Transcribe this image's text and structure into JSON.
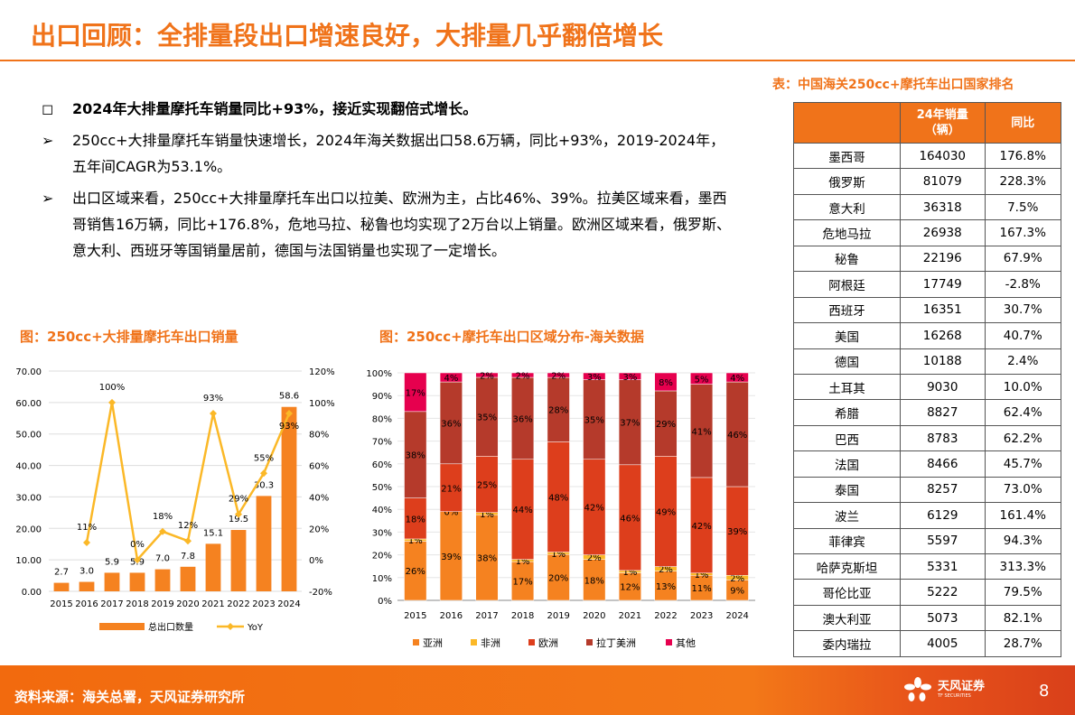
{
  "header": {
    "title": "出口回顾：全排量段出口增速良好，大排量几乎翻倍增长"
  },
  "bullets": [
    {
      "marker": "◻",
      "text": "2024年大排量摩托车销量同比+93%，接近实现翻倍式增长。"
    },
    {
      "marker": "➢",
      "text": "250cc+大排量摩托车销量快速增长，2024年海关数据出口58.6万辆，同比+93%，2019-2024年，五年间CAGR为53.1%。"
    },
    {
      "marker": "➢",
      "text": "出口区域来看，250cc+大排量摩托车出口以拉美、欧洲为主，占比46%、39%。拉美区域来看，墨西哥销售16万辆，同比+176.8%，危地马拉、秘鲁也均实现了2万台以上销量。欧洲区域来看，俄罗斯、意大利、西班牙等国销量居前，德国与法国销量也实现了一定增长。"
    }
  ],
  "table": {
    "caption": "表：中国海关250cc+摩托车出口国家排名",
    "headers": [
      "",
      "24年销量\n（辆）",
      "同比"
    ],
    "rows": [
      [
        "墨西哥",
        "164030",
        "176.8%"
      ],
      [
        "俄罗斯",
        "81079",
        "228.3%"
      ],
      [
        "意大利",
        "36318",
        "7.5%"
      ],
      [
        "危地马拉",
        "26938",
        "167.3%"
      ],
      [
        "秘鲁",
        "22196",
        "67.9%"
      ],
      [
        "阿根廷",
        "17749",
        "-2.8%"
      ],
      [
        "西班牙",
        "16351",
        "30.7%"
      ],
      [
        "美国",
        "16268",
        "40.7%"
      ],
      [
        "德国",
        "10188",
        "2.4%"
      ],
      [
        "土耳其",
        "9030",
        "10.0%"
      ],
      [
        "希腊",
        "8827",
        "62.4%"
      ],
      [
        "巴西",
        "8783",
        "62.2%"
      ],
      [
        "法国",
        "8466",
        "45.7%"
      ],
      [
        "泰国",
        "8257",
        "73.0%"
      ],
      [
        "波兰",
        "6129",
        "161.4%"
      ],
      [
        "菲律宾",
        "5597",
        "94.3%"
      ],
      [
        "哈萨克斯坦",
        "5331",
        "313.3%"
      ],
      [
        "哥伦比亚",
        "5222",
        "79.5%"
      ],
      [
        "澳大利亚",
        "5073",
        "82.1%"
      ],
      [
        "委内瑞拉",
        "4005",
        "28.7%"
      ]
    ]
  },
  "chart_data": [
    {
      "type": "bar+line",
      "title": "图：250cc+大排量摩托车出口销量",
      "categories": [
        "2015",
        "2016",
        "2017",
        "2018",
        "2019",
        "2020",
        "2021",
        "2022",
        "2023",
        "2024"
      ],
      "series": [
        {
          "name": "总出口数量",
          "type": "bar",
          "axis": "left",
          "values": [
            2.7,
            3.0,
            5.9,
            5.9,
            7.0,
            7.8,
            15.1,
            19.5,
            30.3,
            58.6
          ],
          "labels": [
            "2.7",
            "3.0",
            "5.9",
            "5.9",
            "7.0",
            "7.8",
            "15.1",
            "19.5",
            "30.3",
            "58.6"
          ],
          "color": "#f58220"
        },
        {
          "name": "YoY",
          "type": "line",
          "axis": "right",
          "values": [
            null,
            11,
            100,
            0,
            18,
            12,
            93,
            29,
            55,
            93
          ],
          "labels": [
            "",
            "11%",
            "100%",
            "0%",
            "18%",
            "12%",
            "93%",
            "29%",
            "55%",
            "93%"
          ],
          "color": "#fbb827"
        }
      ],
      "ylim_left": [
        0,
        70
      ],
      "yticks_left": [
        "0.00",
        "10.00",
        "20.00",
        "30.00",
        "40.00",
        "50.00",
        "60.00",
        "70.00"
      ],
      "ylim_right": [
        -20,
        120
      ],
      "yticks_right": [
        "-20%",
        "0%",
        "20%",
        "40%",
        "60%",
        "80%",
        "100%",
        "120%"
      ],
      "grid": true,
      "legend": "bottom"
    },
    {
      "type": "stacked-bar",
      "title": "图：250cc+摩托车出口区域分布-海关数据",
      "categories": [
        "2015",
        "2016",
        "2017",
        "2018",
        "2019",
        "2020",
        "2021",
        "2022",
        "2023",
        "2024"
      ],
      "series": [
        {
          "name": "亚洲",
          "color": "#f58220",
          "values": [
            26,
            39,
            38,
            17,
            20,
            18,
            12,
            13,
            11,
            9
          ]
        },
        {
          "name": "非洲",
          "color": "#fbb827",
          "values": [
            1,
            0,
            1,
            1,
            1,
            2,
            1,
            2,
            1,
            2
          ]
        },
        {
          "name": "欧洲",
          "color": "#dd3e1c",
          "values": [
            18,
            21,
            25,
            44,
            48,
            42,
            46,
            49,
            42,
            39
          ]
        },
        {
          "name": "拉丁美洲",
          "color": "#b53a2b",
          "values": [
            38,
            36,
            35,
            36,
            28,
            35,
            37,
            29,
            41,
            46
          ]
        },
        {
          "name": "其他",
          "color": "#e6004e",
          "values": [
            17,
            4,
            2,
            2,
            2,
            3,
            3,
            8,
            5,
            4
          ]
        }
      ],
      "ylim": [
        0,
        100
      ],
      "yticks": [
        "0%",
        "10%",
        "20%",
        "30%",
        "40%",
        "50%",
        "60%",
        "70%",
        "80%",
        "90%",
        "100%"
      ],
      "grid": true,
      "legend": "bottom"
    }
  ],
  "footer": {
    "source": "资料来源：海关总署，天风证券研究所",
    "logo_name": "天风证券",
    "logo_sub": "TF SECURITIES",
    "page": "8"
  }
}
